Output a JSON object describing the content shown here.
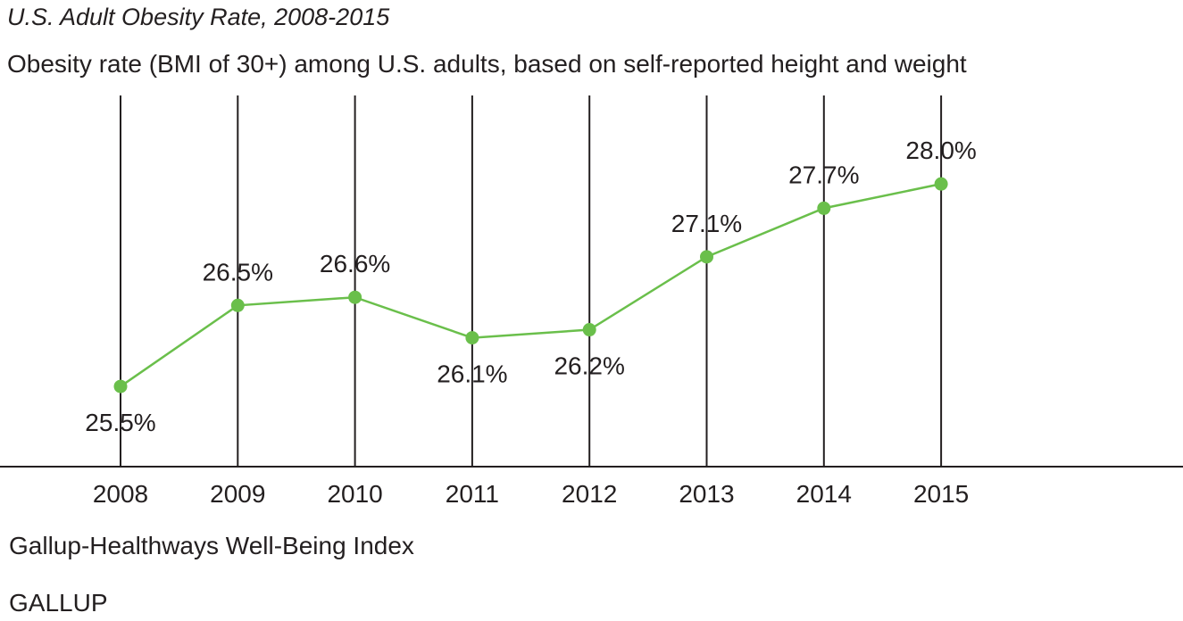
{
  "chart_data": {
    "type": "line",
    "title": "U.S. Adult Obesity Rate, 2008-2015",
    "subtitle": "Obesity rate (BMI of 30+) among U.S. adults, based on self-reported height and weight",
    "x": [
      "2008",
      "2009",
      "2010",
      "2011",
      "2012",
      "2013",
      "2014",
      "2015"
    ],
    "series": [
      {
        "values": [
          25.5,
          26.5,
          26.6,
          26.1,
          26.2,
          27.1,
          27.7,
          28.0
        ],
        "data_labels": [
          "25.5%",
          "26.5%",
          "26.6%",
          "26.1%",
          "26.2%",
          "27.1%",
          "27.7%",
          "28.0%"
        ],
        "label_positions": [
          "below",
          "above",
          "above",
          "below",
          "below",
          "above",
          "above",
          "above"
        ],
        "color": "#6abf4b"
      }
    ],
    "xlabel": "",
    "ylabel": "",
    "ylim": [
      23.0,
      29.5
    ],
    "gridlines": "vertical",
    "axis_color": "#231f20",
    "source": "Gallup-Healthways Well-Being Index",
    "brand": "GALLUP"
  }
}
